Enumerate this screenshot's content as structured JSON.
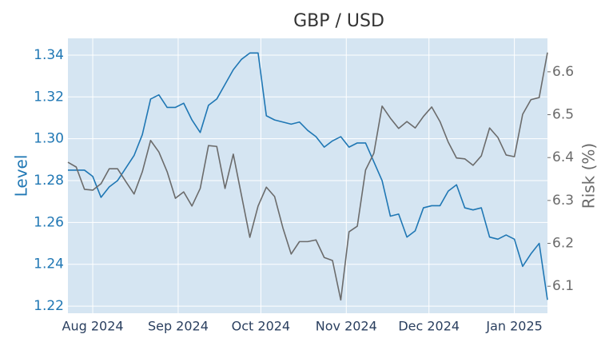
{
  "chart_data": {
    "type": "line",
    "title": "GBP / USD",
    "ylabel": "Level",
    "y2label": "Risk (%)",
    "grid": true,
    "x": [
      "2024-07-23",
      "2024-07-26",
      "2024-07-29",
      "2024-08-01",
      "2024-08-04",
      "2024-08-07",
      "2024-08-10",
      "2024-08-13",
      "2024-08-16",
      "2024-08-19",
      "2024-08-22",
      "2024-08-25",
      "2024-08-28",
      "2024-08-31",
      "2024-09-03",
      "2024-09-06",
      "2024-09-09",
      "2024-09-12",
      "2024-09-15",
      "2024-09-18",
      "2024-09-21",
      "2024-09-24",
      "2024-09-27",
      "2024-09-30",
      "2024-10-03",
      "2024-10-06",
      "2024-10-09",
      "2024-10-12",
      "2024-10-15",
      "2024-10-18",
      "2024-10-21",
      "2024-10-24",
      "2024-10-27",
      "2024-10-30",
      "2024-11-02",
      "2024-11-05",
      "2024-11-08",
      "2024-11-11",
      "2024-11-14",
      "2024-11-17",
      "2024-11-20",
      "2024-11-23",
      "2024-11-26",
      "2024-11-29",
      "2024-12-02",
      "2024-12-05",
      "2024-12-08",
      "2024-12-11",
      "2024-12-14",
      "2024-12-17",
      "2024-12-20",
      "2024-12-23",
      "2024-12-26",
      "2024-12-29",
      "2025-01-01",
      "2025-01-04",
      "2025-01-07",
      "2025-01-10",
      "2025-01-13"
    ],
    "xlim": [
      "2024-07-23",
      "2025-01-13"
    ],
    "xticks": [
      {
        "value": "2024-08-01",
        "label": "Aug 2024"
      },
      {
        "value": "2024-09-01",
        "label": "Sep 2024"
      },
      {
        "value": "2024-10-01",
        "label": "Oct 2024"
      },
      {
        "value": "2024-11-01",
        "label": "Nov 2024"
      },
      {
        "value": "2024-12-01",
        "label": "Dec 2024"
      },
      {
        "value": "2025-01-01",
        "label": "Jan 2025"
      }
    ],
    "ylim": [
      1.2166,
      1.348
    ],
    "yticks": [
      1.22,
      1.24,
      1.26,
      1.28,
      {
        "value": 1.3,
        "label": "1.30"
      },
      1.32,
      1.34
    ],
    "y2lim": [
      6.037,
      6.678
    ],
    "y2ticks": [
      6.1,
      6.2,
      6.3,
      6.4,
      6.5,
      6.6
    ],
    "series": [
      {
        "color": "#1f77b4",
        "axis": "y",
        "values": [
          1.285,
          1.285,
          1.285,
          1.282,
          1.272,
          1.277,
          1.28,
          1.286,
          1.292,
          1.302,
          1.319,
          1.321,
          1.315,
          1.315,
          1.317,
          1.309,
          1.303,
          1.316,
          1.319,
          1.326,
          1.333,
          1.338,
          1.341,
          1.341,
          1.311,
          1.309,
          1.308,
          1.307,
          1.308,
          1.304,
          1.301,
          1.296,
          1.299,
          1.301,
          1.296,
          1.298,
          1.298,
          1.289,
          1.28,
          1.263,
          1.264,
          1.253,
          1.256,
          1.267,
          1.268,
          1.268,
          1.275,
          1.278,
          1.267,
          1.266,
          1.267,
          1.253,
          1.252,
          1.254,
          1.252,
          1.239,
          1.245,
          1.25,
          1.223
        ]
      },
      {
        "color": "#6b6b6b",
        "axis": "y2",
        "values": [
          6.389,
          6.378,
          6.326,
          6.324,
          6.339,
          6.374,
          6.374,
          6.344,
          6.315,
          6.367,
          6.44,
          6.413,
          6.367,
          6.305,
          6.32,
          6.287,
          6.328,
          6.428,
          6.426,
          6.328,
          6.408,
          6.311,
          6.214,
          6.287,
          6.331,
          6.309,
          6.236,
          6.175,
          6.204,
          6.204,
          6.208,
          6.167,
          6.16,
          6.068,
          6.227,
          6.24,
          6.371,
          6.41,
          6.52,
          6.492,
          6.468,
          6.484,
          6.469,
          6.496,
          6.518,
          6.484,
          6.436,
          6.399,
          6.397,
          6.382,
          6.404,
          6.469,
          6.447,
          6.406,
          6.402,
          6.501,
          6.535,
          6.54,
          6.645
        ]
      }
    ]
  }
}
